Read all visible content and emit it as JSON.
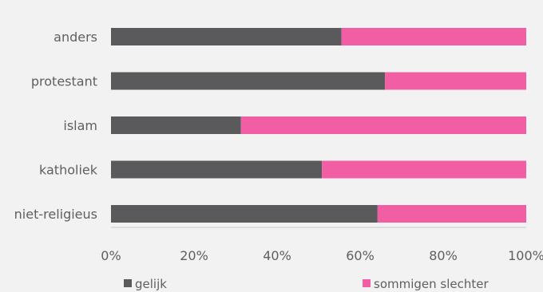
{
  "chart_data": {
    "type": "bar",
    "orientation": "horizontal",
    "stacked": true,
    "percent": true,
    "categories": [
      "anders",
      "protestant",
      "islam",
      "katholiek",
      "niet-religieus"
    ],
    "series": [
      {
        "name": "gelijk",
        "values": [
          55.5,
          66.0,
          31.3,
          50.8,
          64.2
        ]
      },
      {
        "name": "sommigen slechter",
        "values": [
          44.5,
          34.0,
          68.7,
          49.2,
          35.8
        ]
      }
    ],
    "xlim": [
      0,
      100
    ],
    "xticks": [
      "0%",
      "20%",
      "40%",
      "60%",
      "80%",
      "100%"
    ],
    "colors": {
      "gelijk": "#5a5a5d",
      "sommigen slechter": "#f25ea4",
      "axis": "#c8c8c8"
    },
    "grid": false,
    "legend": "bottom"
  }
}
